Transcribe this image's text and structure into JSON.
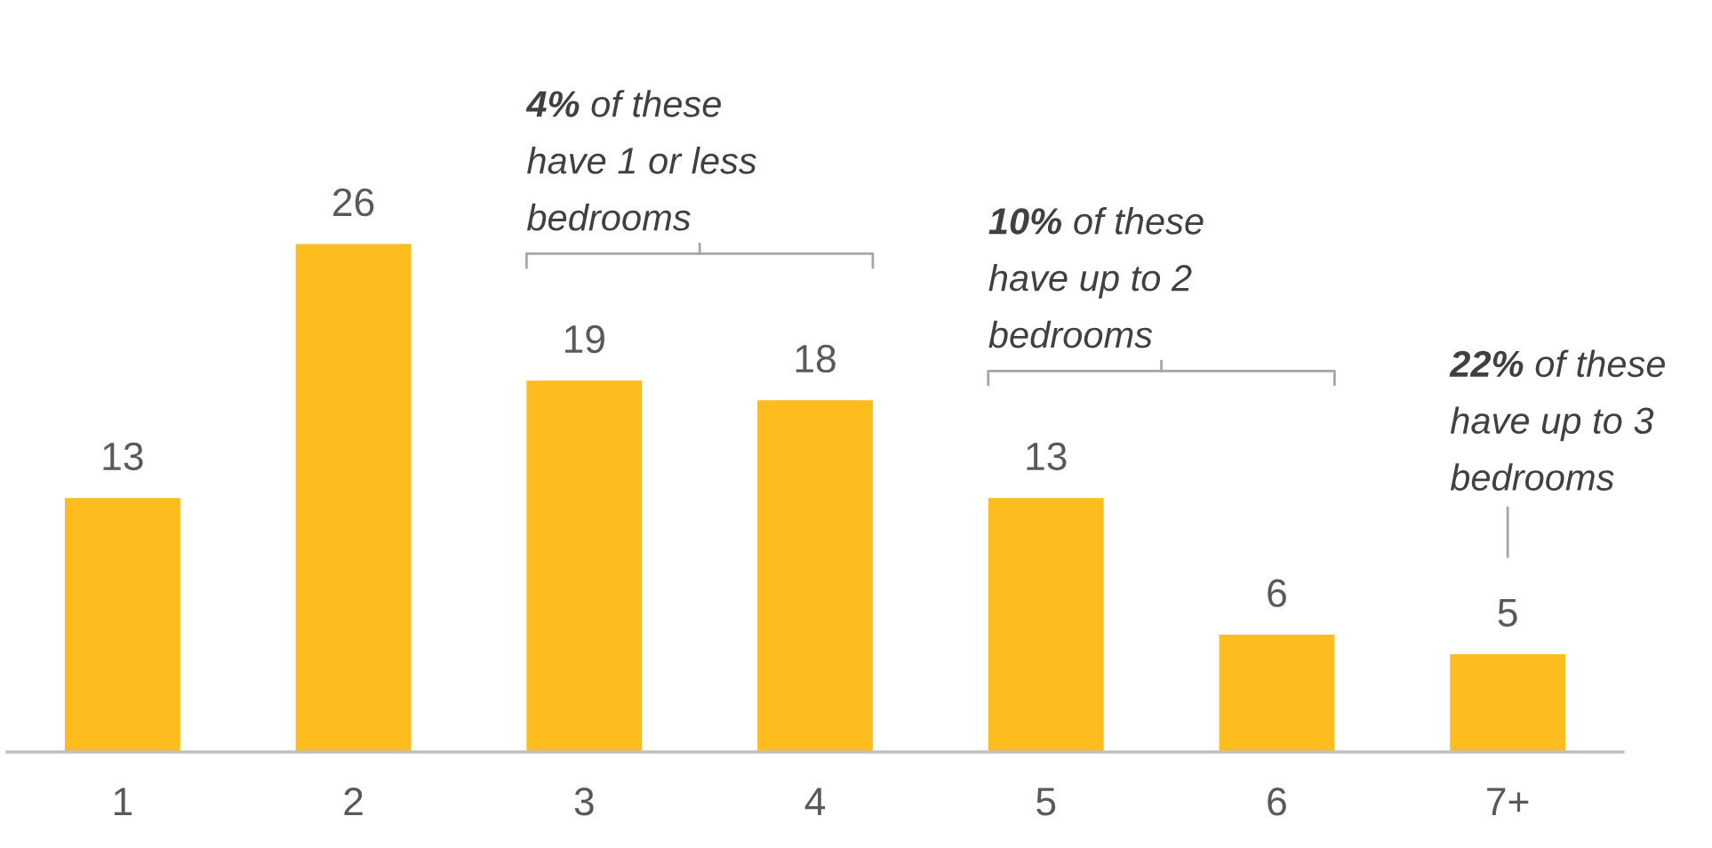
{
  "chart_data": {
    "type": "bar",
    "categories": [
      "1",
      "2",
      "3",
      "4",
      "5",
      "6",
      "7+"
    ],
    "values": [
      13,
      26,
      19,
      18,
      13,
      6,
      5
    ],
    "color": "#febd1f",
    "data_labels": true,
    "grid": false,
    "legend": false,
    "tick_labels": "x",
    "annotations": [
      "4% of these\nhave 1 or less\nbedrooms",
      "10% of these\nhave up to 2\nbedrooms",
      "22% of these\nhave up to 3\nbedrooms"
    ]
  }
}
